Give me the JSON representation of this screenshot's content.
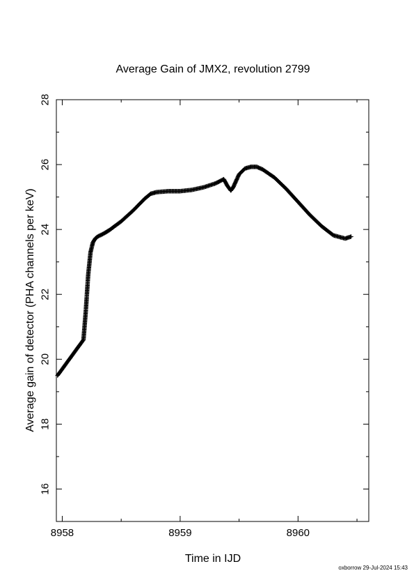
{
  "chart_data": {
    "type": "scatter",
    "title": "Average Gain of JMX2, revolution 2799",
    "xlabel": "Time in IJD",
    "ylabel": "Average gain of detector (PHA channels per keV)",
    "xlim": [
      8957.95,
      8960.6
    ],
    "ylim": [
      15,
      28
    ],
    "xticks": [
      8958,
      8959,
      8960
    ],
    "yticks": [
      16,
      18,
      20,
      22,
      24,
      26,
      28
    ],
    "marker": "+",
    "grid": false,
    "legend": "none",
    "series": [
      {
        "x": [
          8957.96,
          8958.0,
          8958.05,
          8958.1,
          8958.15,
          8958.18,
          8958.2,
          8958.22,
          8958.24,
          8958.26,
          8958.28,
          8958.3,
          8958.35,
          8958.4,
          8958.5,
          8958.6,
          8958.7,
          8958.75,
          8958.8,
          8958.9,
          8959.0,
          8959.1,
          8959.2,
          8959.3,
          8959.37,
          8959.4,
          8959.43,
          8959.45,
          8959.5,
          8959.55,
          8959.6,
          8959.65,
          8959.7,
          8959.8,
          8959.9,
          8960.0,
          8960.1,
          8960.2,
          8960.3,
          8960.4,
          8960.45
        ],
        "y": [
          19.5,
          19.7,
          19.95,
          20.2,
          20.45,
          20.6,
          21.5,
          22.6,
          23.3,
          23.6,
          23.72,
          23.78,
          23.87,
          23.98,
          24.25,
          24.58,
          24.95,
          25.1,
          25.15,
          25.18,
          25.18,
          25.22,
          25.3,
          25.42,
          25.55,
          25.35,
          25.2,
          25.3,
          25.7,
          25.88,
          25.93,
          25.93,
          25.85,
          25.6,
          25.25,
          24.85,
          24.45,
          24.1,
          23.82,
          23.72,
          23.78
        ]
      }
    ]
  },
  "footer": "oxborrow 29-Jul-2024 15:43"
}
